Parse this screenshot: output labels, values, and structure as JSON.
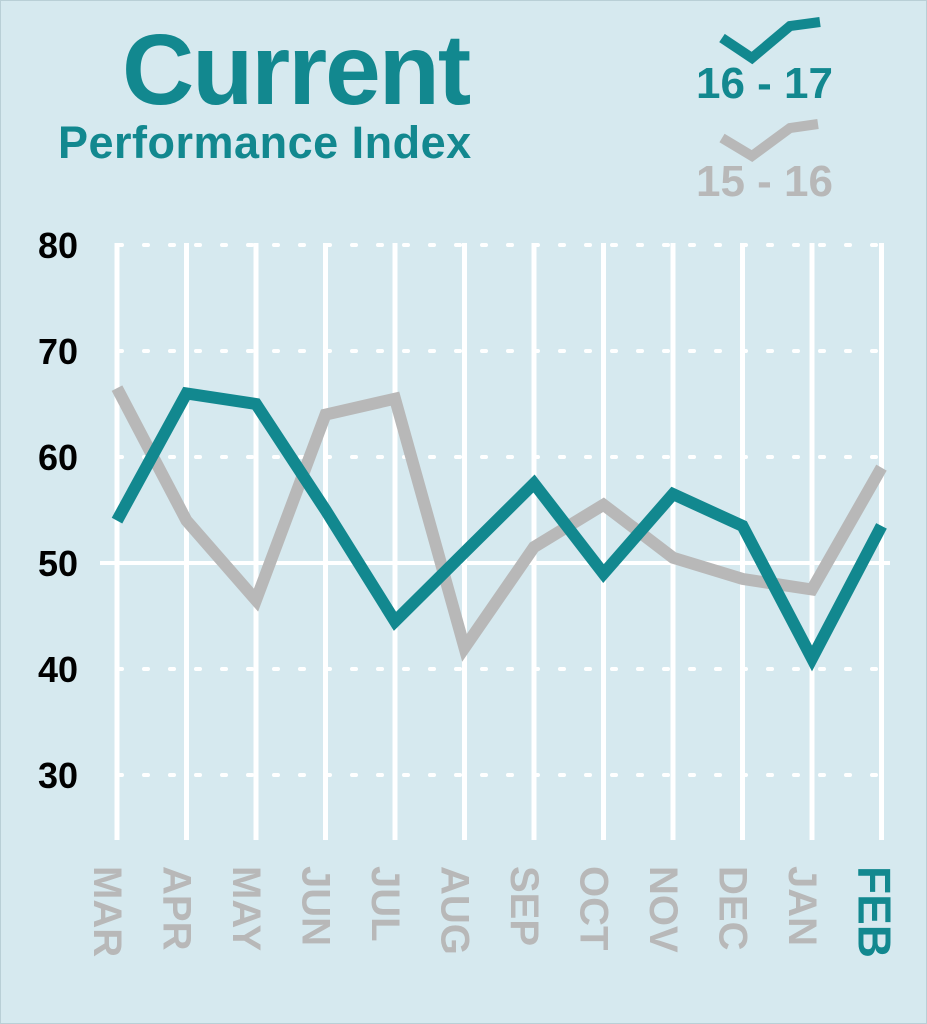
{
  "header": {
    "title": "Current",
    "subtitle": "Performance Index"
  },
  "chart_data": {
    "type": "line",
    "title": "Current Performance Index",
    "categories": [
      "MAR",
      "APR",
      "MAY",
      "JUN",
      "JUL",
      "AUG",
      "SEP",
      "OCT",
      "NOV",
      "DEC",
      "JAN",
      "FEB"
    ],
    "highlight_category": "FEB",
    "yticks": [
      "80",
      "70",
      "60",
      "50",
      "40",
      "30"
    ],
    "ylim": [
      22,
      80
    ],
    "reference_line": 50,
    "grid": true,
    "legend_position": "top-right",
    "series": [
      {
        "name": "16 - 17",
        "color": "#12888f",
        "values": [
          54,
          66,
          65,
          55,
          44.5,
          51,
          57.5,
          49,
          56.5,
          53.5,
          41,
          53.5
        ]
      },
      {
        "name": "15 - 16",
        "color": "#b8b8b8",
        "values": [
          66.5,
          54,
          46.5,
          64,
          65.5,
          42,
          51.5,
          55.5,
          50.5,
          48.5,
          47.5,
          59
        ]
      }
    ]
  },
  "colors": {
    "background": "#d6e9ef",
    "accent": "#12888f",
    "muted": "#b8b8b8",
    "grid": "#ffffff",
    "axis_text": "#000000"
  }
}
